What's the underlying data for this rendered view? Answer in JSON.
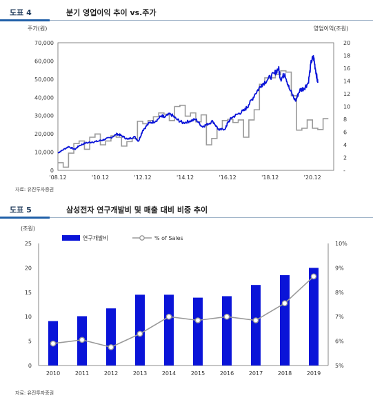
{
  "header1": {
    "tag": "도표 4",
    "title": "분기 영업이익 추이 vs.주가"
  },
  "header2": {
    "tag": "도표 5",
    "title": "삼성전자 연구개발비 및 매출 대비 비중 추이"
  },
  "source1": "자료: 유진투자증권",
  "source2": "자료: 유진투자증권",
  "colors": {
    "blue": "#0a14d8",
    "gray": "#9a9a9a",
    "header_bar": "#1f5fa8"
  },
  "chart_data": [
    {
      "type": "line",
      "left_unit": "주가(원)",
      "right_unit": "영업이익(조원)",
      "x_ticks": [
        "'08.12",
        "'10.12",
        "'12.12",
        "'14.12",
        "'16.12",
        "'18.12",
        "'20.12"
      ],
      "xlim": [
        2008.0,
        2021.0
      ],
      "ylim_left": [
        0,
        70000
      ],
      "ylim_right": [
        0,
        20
      ],
      "y_ticks_left": [
        "0",
        "10,000",
        "20,000",
        "30,000",
        "40,000",
        "50,000",
        "60,000",
        "70,000"
      ],
      "y_ticks_right": [
        "-",
        "2",
        "4",
        "6",
        "8",
        "10",
        "12",
        "14",
        "16",
        "18",
        "20"
      ],
      "series": [
        {
          "axis": "left",
          "style": "line",
          "x": [
            2008.0,
            2008.2,
            2008.5,
            2008.8,
            2009.0,
            2009.3,
            2009.6,
            2009.9,
            2010.2,
            2010.5,
            2010.8,
            2011.0,
            2011.3,
            2011.6,
            2011.8,
            2012.0,
            2012.3,
            2012.6,
            2012.9,
            2013.0,
            2013.3,
            2013.6,
            2013.9,
            2014.2,
            2014.5,
            2014.8,
            2015.0,
            2015.3,
            2015.6,
            2015.9,
            2016.0,
            2016.2,
            2016.5,
            2016.8,
            2017.0,
            2017.3,
            2017.6,
            2017.9,
            2018.2,
            2018.4,
            2018.5,
            2018.7,
            2018.9,
            2019.2,
            2019.4,
            2019.6,
            2019.8,
            2019.95,
            2020.05,
            2020.15,
            2020.25
          ],
          "y": [
            9500,
            11000,
            13000,
            11500,
            13500,
            15000,
            15500,
            16000,
            17000,
            18000,
            20000,
            19000,
            17000,
            18500,
            16000,
            22000,
            26000,
            27000,
            30000,
            29000,
            31000,
            28000,
            26000,
            27000,
            28000,
            24000,
            25000,
            27000,
            22000,
            23000,
            26000,
            29000,
            31000,
            33000,
            36000,
            42000,
            47000,
            50000,
            53000,
            56000,
            50000,
            53000,
            45000,
            38000,
            44000,
            45000,
            48000,
            60000,
            62000,
            55000,
            48000
          ]
        },
        {
          "axis": "right",
          "style": "step",
          "x": [
            2008.0,
            2008.25,
            2008.5,
            2008.75,
            2009.0,
            2009.25,
            2009.5,
            2009.75,
            2010.0,
            2010.25,
            2010.5,
            2010.75,
            2011.0,
            2011.25,
            2011.5,
            2011.75,
            2012.0,
            2012.25,
            2012.5,
            2012.75,
            2013.0,
            2013.25,
            2013.5,
            2013.75,
            2014.0,
            2014.25,
            2014.5,
            2014.75,
            2015.0,
            2015.25,
            2015.5,
            2015.75,
            2016.0,
            2016.25,
            2016.5,
            2016.75,
            2017.0,
            2017.25,
            2017.5,
            2017.75,
            2018.0,
            2018.25,
            2018.5,
            2018.75,
            2019.0,
            2019.25,
            2019.5,
            2019.75,
            2020.0,
            2020.25,
            2020.5
          ],
          "y": [
            1.2,
            0.5,
            2.7,
            4.2,
            4.6,
            3.3,
            5.2,
            5.7,
            4.0,
            4.6,
            5.4,
            5.2,
            3.8,
            4.5,
            5.0,
            7.7,
            7.3,
            7.8,
            8.4,
            9.0,
            8.8,
            7.8,
            10.0,
            10.2,
            8.5,
            9.0,
            7.6,
            8.7,
            4.0,
            5.0,
            6.5,
            7.8,
            8.0,
            7.5,
            7.9,
            5.2,
            7.9,
            9.5,
            13.5,
            14.5,
            14.5,
            15.0,
            15.6,
            15.4,
            11.7,
            6.3,
            6.6,
            7.9,
            6.6,
            6.4,
            8.1
          ]
        }
      ]
    },
    {
      "type": "bar",
      "ylabel_left": "(조원)",
      "categories": [
        "2010",
        "2011",
        "2012",
        "2013",
        "2014",
        "2015",
        "2016",
        "2017",
        "2018",
        "2019"
      ],
      "ylim_left": [
        0,
        25
      ],
      "ylim_right": [
        5,
        10
      ],
      "y_ticks_left": [
        "0",
        "5",
        "10",
        "15",
        "20",
        "25"
      ],
      "y_ticks_right": [
        "5%",
        "6%",
        "7%",
        "8%",
        "9%",
        "10%"
      ],
      "series": [
        {
          "name": "연구개발비",
          "axis": "left",
          "values": [
            9.1,
            10.1,
            11.7,
            14.5,
            14.5,
            13.9,
            14.2,
            16.5,
            18.5,
            20.0
          ]
        },
        {
          "name": "% of Sales",
          "axis": "right",
          "type": "line",
          "values": [
            5.9,
            6.05,
            5.75,
            6.3,
            7.0,
            6.85,
            7.0,
            6.85,
            7.55,
            8.65
          ]
        }
      ],
      "legend": "top-center"
    }
  ]
}
